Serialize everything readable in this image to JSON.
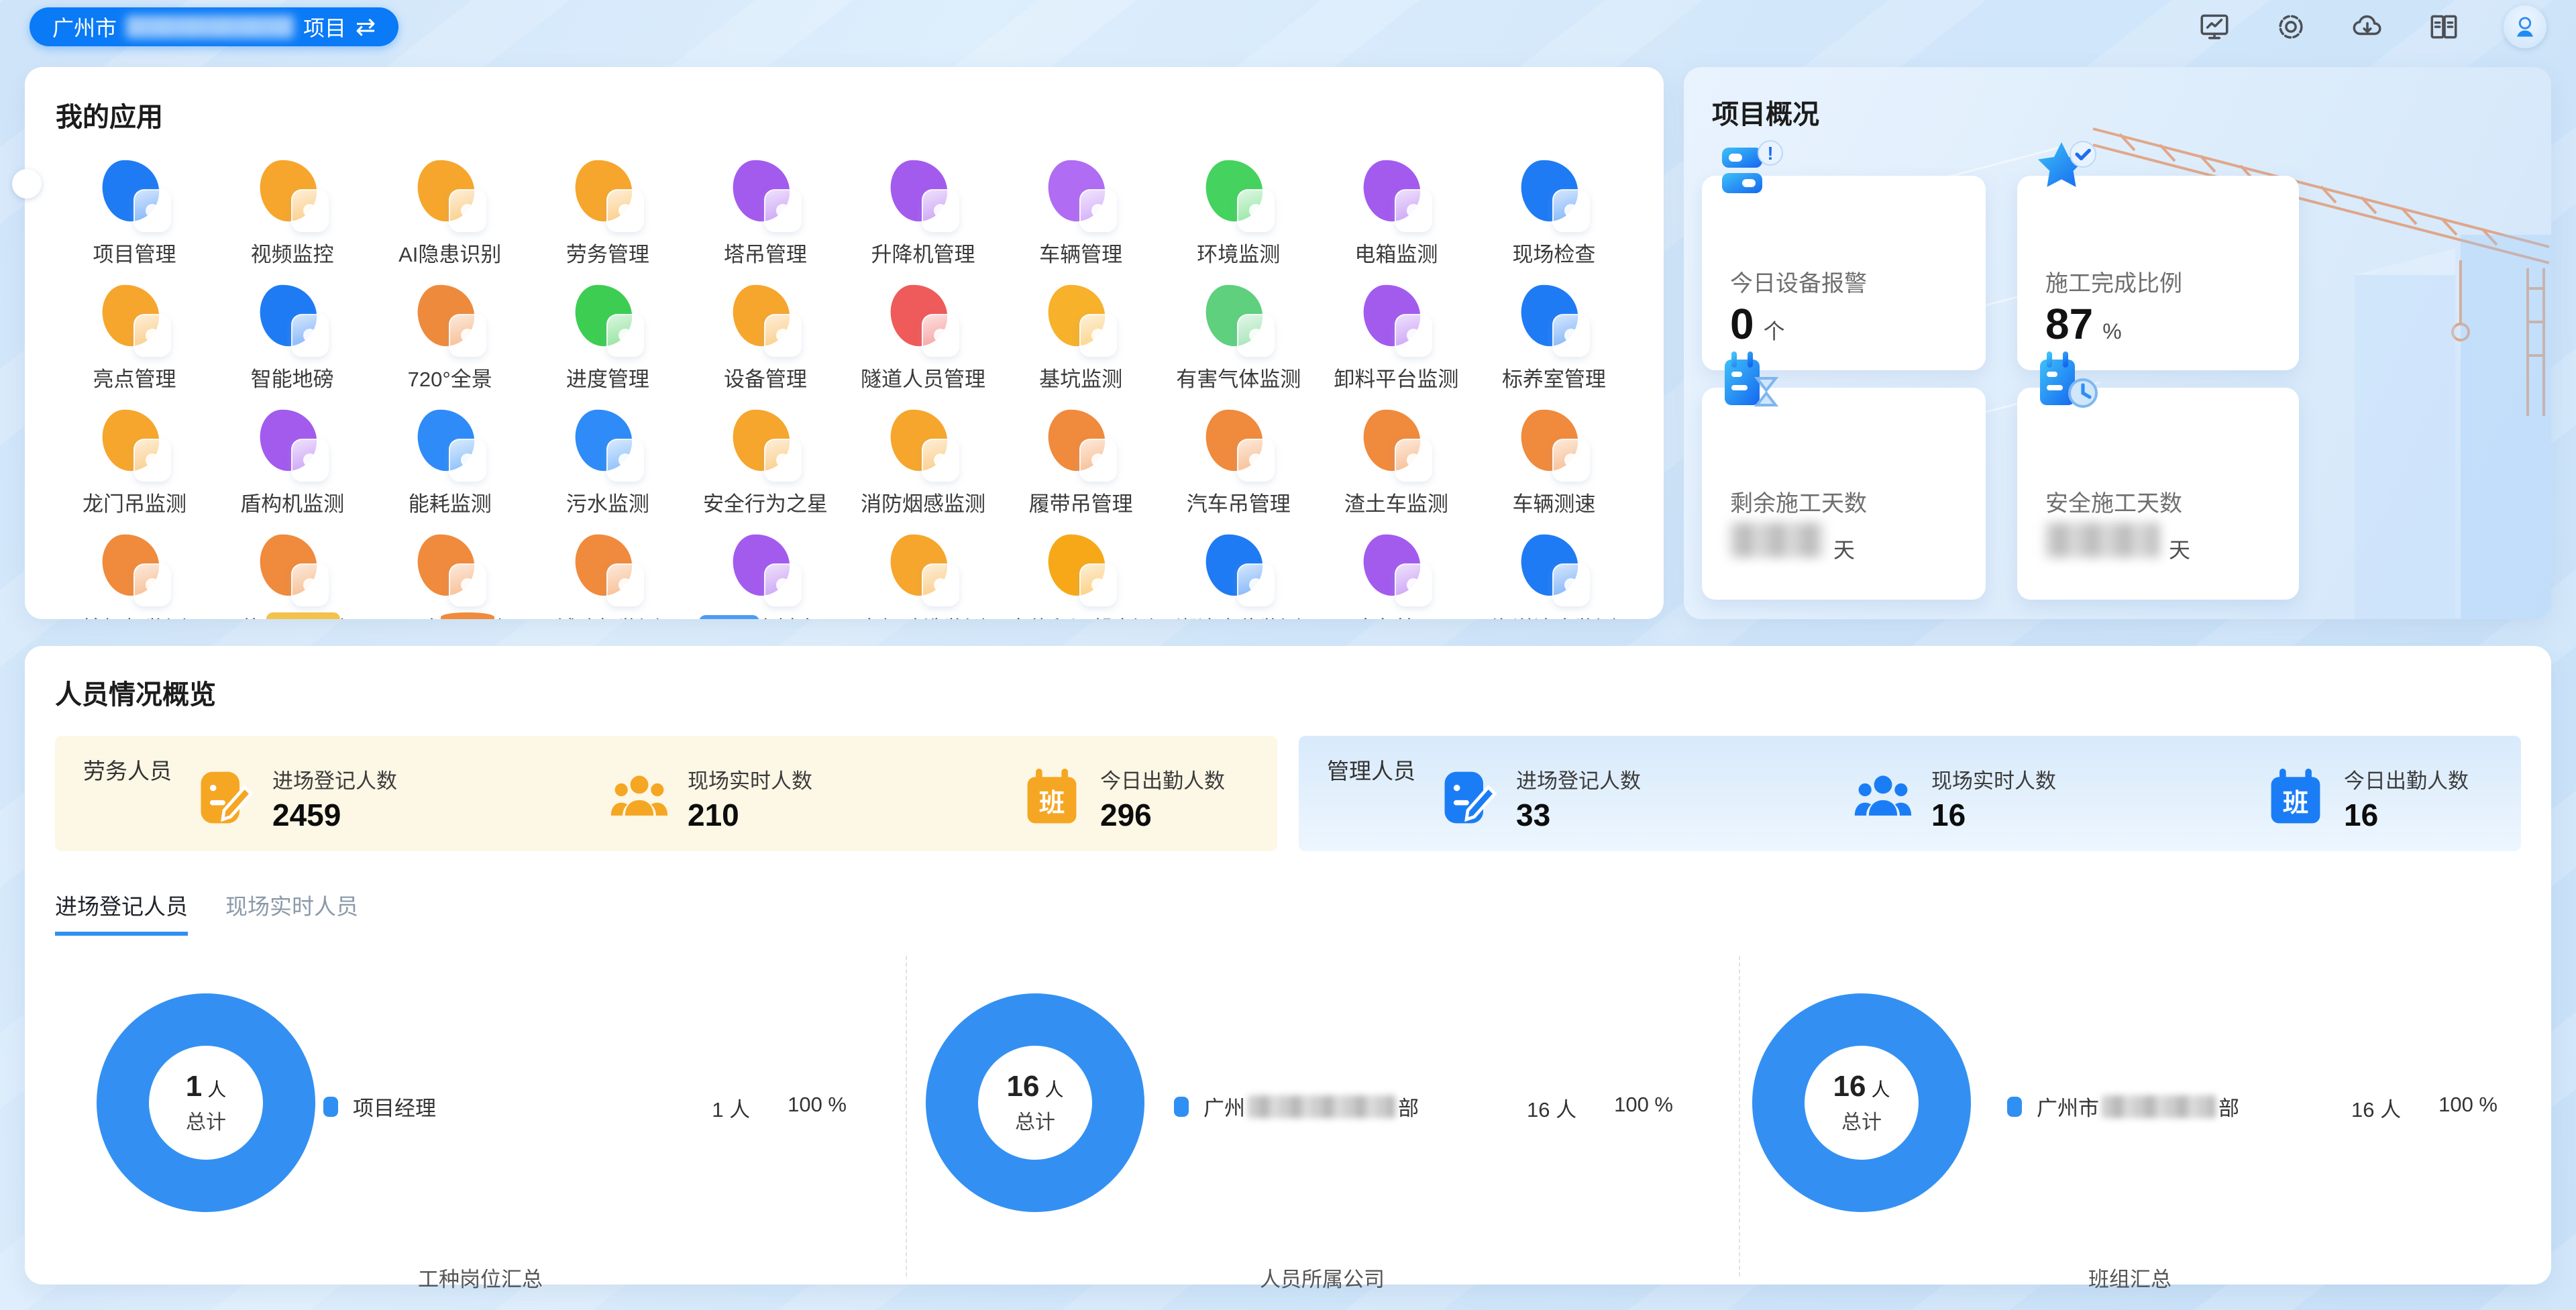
{
  "topbar": {
    "project": {
      "prefix": "广州市",
      "redacted": "████████",
      "suffix": "项目",
      "switch_icon": "⇄"
    },
    "actions": [
      {
        "name": "monitor",
        "label": "监控大屏"
      },
      {
        "name": "settings",
        "label": "设置"
      },
      {
        "name": "cloud-download",
        "label": "下载"
      },
      {
        "name": "manual",
        "label": "手册"
      },
      {
        "name": "avatar",
        "label": "用户"
      }
    ]
  },
  "apps": {
    "title": "我的应用",
    "items": [
      {
        "label": "项目管理",
        "color": "#1F7BF4"
      },
      {
        "label": "视频监控",
        "color": "#F6A62C"
      },
      {
        "label": "AI隐患识别",
        "color": "#F6A62C"
      },
      {
        "label": "劳务管理",
        "color": "#F6A62C"
      },
      {
        "label": "塔吊管理",
        "color": "#A35BEE"
      },
      {
        "label": "升降机管理",
        "color": "#A35BEE"
      },
      {
        "label": "车辆管理",
        "color": "#B06CF2"
      },
      {
        "label": "环境监测",
        "color": "#45D25F"
      },
      {
        "label": "电箱监测",
        "color": "#A35BEE"
      },
      {
        "label": "现场检查",
        "color": "#1F7BF4"
      },
      {
        "label": "亮点管理",
        "color": "#F6A62C"
      },
      {
        "label": "智能地磅",
        "color": "#1F7BF4"
      },
      {
        "label": "720°全景",
        "color": "#EE8A3C"
      },
      {
        "label": "进度管理",
        "color": "#3DCD52"
      },
      {
        "label": "设备管理",
        "color": "#F6A62C"
      },
      {
        "label": "隧道人员管理",
        "color": "#EF5A5A"
      },
      {
        "label": "基坑监测",
        "color": "#F7B12B"
      },
      {
        "label": "有害气体监测",
        "color": "#5ED07E"
      },
      {
        "label": "卸料平台监测",
        "color": "#A35BEE"
      },
      {
        "label": "标养室管理",
        "color": "#1F7BF4"
      },
      {
        "label": "龙门吊监测",
        "color": "#F6A62C"
      },
      {
        "label": "盾构机监测",
        "color": "#A35BEE"
      },
      {
        "label": "能耗监测",
        "color": "#2E8BF7"
      },
      {
        "label": "污水监测",
        "color": "#2E8BF7"
      },
      {
        "label": "安全行为之星",
        "color": "#F6A62C"
      },
      {
        "label": "消防烟感监测",
        "color": "#F6A62C"
      },
      {
        "label": "履带吊管理",
        "color": "#F08A3C"
      },
      {
        "label": "汽车吊管理",
        "color": "#F08A3C"
      },
      {
        "label": "渣土车监测",
        "color": "#F08A3C"
      },
      {
        "label": "车辆测速",
        "color": "#F08A3C"
      },
      {
        "label": "挖掘机监测",
        "color": "#F08A3C"
      },
      {
        "label": "装载车监测",
        "color": "#F08A3C"
      },
      {
        "label": "压路机监测",
        "color": "#F08A3C"
      },
      {
        "label": "铺路机监测",
        "color": "#F08A3C"
      },
      {
        "label": "共享资料库",
        "color": "#A35BEE"
      },
      {
        "label": "车辆冲洗监测",
        "color": "#F6A62C"
      },
      {
        "label": "大体积混凝土测温",
        "color": "#F7A819"
      },
      {
        "label": "潮汐水位监测",
        "color": "#1F7BF4"
      },
      {
        "label": "应急管理",
        "color": "#A35BEE"
      },
      {
        "label": "海洋浊度监测",
        "color": "#1F7BF4"
      }
    ]
  },
  "project_overview": {
    "title": "项目概况",
    "cards": [
      {
        "label": "今日设备报警",
        "value": "0",
        "unit": "个",
        "icon": "device-alert",
        "redacted": false
      },
      {
        "label": "施工完成比例",
        "value": "87",
        "unit": "%",
        "icon": "star-check",
        "redacted": false
      },
      {
        "label": "剩余施工天数",
        "value": "",
        "unit": "天",
        "icon": "calendar-hourglass",
        "redacted": true
      },
      {
        "label": "安全施工天数",
        "value": "",
        "unit": "天",
        "icon": "calendar-clock",
        "redacted": true
      }
    ]
  },
  "personnel": {
    "title": "人员情况概览",
    "groups": [
      {
        "name": "劳务人员",
        "theme": "#F5A623",
        "stats": [
          {
            "label": "进场登记人数",
            "value": "2459",
            "icon": "register"
          },
          {
            "label": "现场实时人数",
            "value": "210",
            "icon": "people"
          },
          {
            "label": "今日出勤人数",
            "value": "296",
            "icon": "calendar-ban"
          }
        ]
      },
      {
        "name": "管理人员",
        "theme": "#1B7DF5",
        "stats": [
          {
            "label": "进场登记人数",
            "value": "33",
            "icon": "register"
          },
          {
            "label": "现场实时人数",
            "value": "16",
            "icon": "people"
          },
          {
            "label": "今日出勤人数",
            "value": "16",
            "icon": "calendar-ban"
          }
        ]
      }
    ],
    "tabs": [
      {
        "label": "进场登记人员",
        "active": true
      },
      {
        "label": "现场实时人员",
        "active": false
      }
    ],
    "donut_color": "#3390F2",
    "charts": [
      {
        "center_value": "1",
        "center_unit": "人",
        "center_label": "总计",
        "legend_prefix": "项目经理",
        "legend_redacted_width": 0,
        "legend_suffix": "",
        "count": "1 人",
        "percent": "100 %",
        "caption": "工种岗位汇总"
      },
      {
        "center_value": "16",
        "center_unit": "人",
        "center_label": "总计",
        "legend_prefix": "广州",
        "legend_redacted_width": 220,
        "legend_suffix": "部",
        "count": "16 人",
        "percent": "100 %",
        "caption": "人员所属公司"
      },
      {
        "center_value": "16",
        "center_unit": "人",
        "center_label": "总计",
        "legend_prefix": "广州市",
        "legend_redacted_width": 170,
        "legend_suffix": "部",
        "count": "16 人",
        "percent": "100 %",
        "caption": "班组汇总"
      }
    ]
  },
  "chart_data": [
    {
      "type": "pie",
      "title": "工种岗位汇总",
      "labels": [
        "项目经理"
      ],
      "values": [
        1
      ],
      "unit": "人",
      "percents": [
        100
      ],
      "center": "1 人 总计",
      "color": "#3390F2"
    },
    {
      "type": "pie",
      "title": "人员所属公司",
      "labels": [
        "广州████部"
      ],
      "values": [
        16
      ],
      "unit": "人",
      "percents": [
        100
      ],
      "center": "16 人 总计",
      "color": "#3390F2"
    },
    {
      "type": "pie",
      "title": "班组汇总",
      "labels": [
        "广州市███部"
      ],
      "values": [
        16
      ],
      "unit": "人",
      "percents": [
        100
      ],
      "center": "16 人 总计",
      "color": "#3390F2"
    }
  ]
}
